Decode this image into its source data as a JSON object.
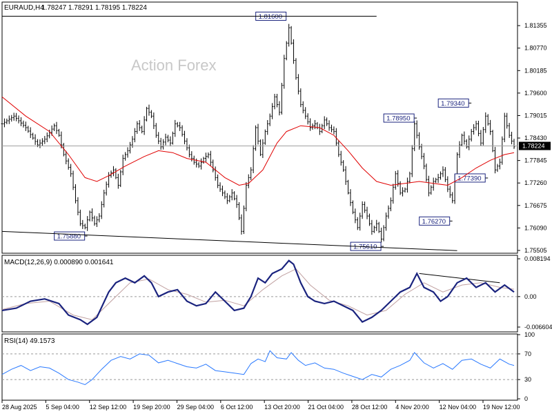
{
  "chart_data": {
    "type": "ohlc",
    "instrument": "EURAUD,H4",
    "header_values": "1.78247 1.78291 1.78195 1.78224",
    "watermark": "Action Forex",
    "current_price": 1.78224,
    "current_price_label": "1.78224",
    "price_axis": {
      "ylim": [
        1.7545,
        1.8195
      ],
      "ticks": [
        "1.81355",
        "1.80770",
        "1.80185",
        "1.79600",
        "1.79015",
        "1.78430",
        "1.77845",
        "1.77260",
        "1.76675",
        "1.76090",
        "1.75505"
      ]
    },
    "x_labels": [
      "28 Aug 2025",
      "5 Sep 04:00",
      "12 Sep 12:00",
      "19 Sep 20:00",
      "29 Sep 04:00",
      "6 Oct 12:00",
      "13 Oct 20:00",
      "21 Oct 04:00",
      "28 Oct 12:00",
      "4 Nov 20:00",
      "12 Nov 04:00",
      "19 Nov 12:00"
    ],
    "close_path": [
      [
        0,
        1.788
      ],
      [
        5,
        1.79
      ],
      [
        10,
        1.787
      ],
      [
        15,
        1.7825
      ],
      [
        18,
        1.784
      ],
      [
        22,
        1.7875
      ],
      [
        24,
        1.785
      ],
      [
        26,
        1.78
      ],
      [
        29,
        1.775
      ],
      [
        31,
        1.768
      ],
      [
        33,
        1.762
      ],
      [
        35,
        1.761
      ],
      [
        37,
        1.765
      ],
      [
        39,
        1.762
      ],
      [
        41,
        1.764
      ],
      [
        43,
        1.77
      ],
      [
        45,
        1.7745
      ],
      [
        47,
        1.776
      ],
      [
        49,
        1.772
      ],
      [
        51,
        1.779
      ],
      [
        53,
        1.781
      ],
      [
        55,
        1.784
      ],
      [
        57,
        1.788
      ],
      [
        59,
        1.786
      ],
      [
        61,
        1.792
      ],
      [
        63,
        1.79
      ],
      [
        65,
        1.785
      ],
      [
        67,
        1.782
      ],
      [
        69,
        1.7845
      ],
      [
        71,
        1.783
      ],
      [
        73,
        1.788
      ],
      [
        75,
        1.787
      ],
      [
        77,
        1.7835
      ],
      [
        79,
        1.78
      ],
      [
        81,
        1.778
      ],
      [
        83,
        1.777
      ],
      [
        85,
        1.779
      ],
      [
        87,
        1.78
      ],
      [
        89,
        1.776
      ],
      [
        91,
        1.772
      ],
      [
        93,
        1.77
      ],
      [
        95,
        1.768
      ],
      [
        97,
        1.77
      ],
      [
        99,
        1.767
      ],
      [
        101,
        1.76
      ],
      [
        103,
        1.772
      ],
      [
        105,
        1.776
      ],
      [
        107,
        1.787
      ],
      [
        109,
        1.78
      ],
      [
        111,
        1.786
      ],
      [
        113,
        1.79
      ],
      [
        115,
        1.795
      ],
      [
        117,
        1.791
      ],
      [
        119,
        1.805
      ],
      [
        121,
        1.813
      ],
      [
        122,
        1.809
      ],
      [
        124,
        1.8
      ],
      [
        126,
        1.793
      ],
      [
        128,
        1.79
      ],
      [
        130,
        1.787
      ],
      [
        132,
        1.788
      ],
      [
        134,
        1.786
      ],
      [
        136,
        1.789
      ],
      [
        138,
        1.787
      ],
      [
        140,
        1.786
      ],
      [
        142,
        1.78
      ],
      [
        144,
        1.776
      ],
      [
        146,
        1.77
      ],
      [
        148,
        1.765
      ],
      [
        150,
        1.761
      ],
      [
        152,
        1.767
      ],
      [
        154,
        1.764
      ],
      [
        156,
        1.76
      ],
      [
        158,
        1.762
      ],
      [
        160,
        1.758
      ],
      [
        162,
        1.764
      ],
      [
        164,
        1.768
      ],
      [
        166,
        1.775
      ],
      [
        168,
        1.77
      ],
      [
        170,
        1.771
      ],
      [
        172,
        1.775
      ],
      [
        174,
        1.788
      ],
      [
        176,
        1.782
      ],
      [
        178,
        1.777
      ],
      [
        180,
        1.77
      ],
      [
        182,
        1.773
      ],
      [
        184,
        1.774
      ],
      [
        186,
        1.776
      ],
      [
        188,
        1.771
      ],
      [
        190,
        1.768
      ],
      [
        192,
        1.78
      ],
      [
        194,
        1.785
      ],
      [
        196,
        1.782
      ],
      [
        198,
        1.786
      ],
      [
        200,
        1.788
      ],
      [
        202,
        1.783
      ],
      [
        204,
        1.79
      ],
      [
        206,
        1.786
      ],
      [
        208,
        1.776
      ],
      [
        210,
        1.778
      ],
      [
        212,
        1.79
      ],
      [
        214,
        1.785
      ],
      [
        216,
        1.782
      ]
    ],
    "moving_average": [
      [
        0,
        1.795
      ],
      [
        10,
        1.79
      ],
      [
        20,
        1.786
      ],
      [
        28,
        1.78
      ],
      [
        35,
        1.774
      ],
      [
        40,
        1.773
      ],
      [
        45,
        1.7745
      ],
      [
        52,
        1.777
      ],
      [
        60,
        1.7795
      ],
      [
        66,
        1.781
      ],
      [
        72,
        1.7805
      ],
      [
        78,
        1.779
      ],
      [
        86,
        1.778
      ],
      [
        94,
        1.774
      ],
      [
        100,
        1.772
      ],
      [
        104,
        1.7725
      ],
      [
        110,
        1.776
      ],
      [
        116,
        1.783
      ],
      [
        120,
        1.786
      ],
      [
        126,
        1.7875
      ],
      [
        134,
        1.787
      ],
      [
        140,
        1.785
      ],
      [
        146,
        1.781
      ],
      [
        152,
        1.7765
      ],
      [
        158,
        1.773
      ],
      [
        164,
        1.772
      ],
      [
        170,
        1.7725
      ],
      [
        176,
        1.773
      ],
      [
        182,
        1.7725
      ],
      [
        188,
        1.772
      ],
      [
        194,
        1.774
      ],
      [
        200,
        1.7765
      ],
      [
        206,
        1.7785
      ],
      [
        212,
        1.78
      ],
      [
        216,
        1.7805
      ]
    ],
    "annotations": [
      {
        "label": "1.81600",
        "x": 121,
        "value": 1.816
      },
      {
        "label": "1.75880",
        "x": 36,
        "value": 1.7588
      },
      {
        "label": "1.75610",
        "x": 161,
        "value": 1.7561
      },
      {
        "label": "1.78950",
        "x": 175,
        "value": 1.7895
      },
      {
        "label": "1.76270",
        "x": 190,
        "value": 1.7627
      },
      {
        "label": "1.79340",
        "x": 198,
        "value": 1.7934
      },
      {
        "label": "1.77390",
        "x": 205,
        "value": 1.7739
      }
    ],
    "trendlines": [
      {
        "panel": "price",
        "from": [
          0,
          1.816
        ],
        "to": [
          158,
          1.816
        ]
      },
      {
        "panel": "price",
        "from": [
          0,
          1.76
        ],
        "to": [
          192,
          1.755
        ]
      },
      {
        "panel": "macd",
        "from": [
          176,
          0.005
        ],
        "to": [
          210,
          0.003
        ]
      }
    ],
    "macd": {
      "label": "MACD(12,26,9) 0.000890 0.001641",
      "ylim": [
        -0.0075,
        0.0088
      ],
      "ticks": [
        "0.008194",
        "0.00",
        "-0.006604"
      ],
      "line": [
        [
          0,
          -0.003
        ],
        [
          6,
          -0.0025
        ],
        [
          12,
          -0.001
        ],
        [
          18,
          -0.0005
        ],
        [
          24,
          -0.0015
        ],
        [
          28,
          -0.004
        ],
        [
          33,
          -0.005
        ],
        [
          36,
          -0.006
        ],
        [
          40,
          -0.0045
        ],
        [
          45,
          0.001
        ],
        [
          48,
          0.003
        ],
        [
          52,
          0.004
        ],
        [
          56,
          0.003
        ],
        [
          60,
          0.0045
        ],
        [
          63,
          0.003
        ],
        [
          66,
          0.0
        ],
        [
          70,
          0.001
        ],
        [
          74,
          0.0015
        ],
        [
          78,
          -0.001
        ],
        [
          82,
          -0.002
        ],
        [
          86,
          -0.0015
        ],
        [
          90,
          0.001
        ],
        [
          94,
          -0.001
        ],
        [
          98,
          -0.003
        ],
        [
          102,
          -0.0025
        ],
        [
          105,
          0.0
        ],
        [
          108,
          0.004
        ],
        [
          111,
          0.003
        ],
        [
          114,
          0.005
        ],
        [
          118,
          0.006
        ],
        [
          121,
          0.0078
        ],
        [
          123,
          0.007
        ],
        [
          126,
          0.003
        ],
        [
          129,
          0.0
        ],
        [
          132,
          -0.001
        ],
        [
          136,
          -0.0015
        ],
        [
          140,
          -0.001
        ],
        [
          144,
          -0.002
        ],
        [
          148,
          -0.003
        ],
        [
          152,
          -0.0055
        ],
        [
          156,
          -0.0045
        ],
        [
          160,
          -0.003
        ],
        [
          164,
          -0.001
        ],
        [
          168,
          0.001
        ],
        [
          172,
          0.002
        ],
        [
          175,
          0.005
        ],
        [
          178,
          0.002
        ],
        [
          182,
          0.001
        ],
        [
          185,
          -0.001
        ],
        [
          188,
          0.0
        ],
        [
          192,
          0.003
        ],
        [
          196,
          0.004
        ],
        [
          200,
          0.002
        ],
        [
          204,
          0.003
        ],
        [
          208,
          0.001
        ],
        [
          212,
          0.0025
        ],
        [
          216,
          0.001
        ]
      ],
      "signal": [
        [
          0,
          -0.0028
        ],
        [
          10,
          -0.0015
        ],
        [
          20,
          -0.001
        ],
        [
          30,
          -0.004
        ],
        [
          38,
          -0.005
        ],
        [
          46,
          -0.001
        ],
        [
          54,
          0.003
        ],
        [
          62,
          0.0038
        ],
        [
          70,
          0.0015
        ],
        [
          78,
          0.0005
        ],
        [
          86,
          -0.0012
        ],
        [
          94,
          -0.0008
        ],
        [
          102,
          -0.002
        ],
        [
          110,
          0.0015
        ],
        [
          118,
          0.0045
        ],
        [
          124,
          0.006
        ],
        [
          130,
          0.0025
        ],
        [
          138,
          -0.0008
        ],
        [
          146,
          -0.002
        ],
        [
          154,
          -0.004
        ],
        [
          162,
          -0.003
        ],
        [
          170,
          0.0005
        ],
        [
          178,
          0.003
        ],
        [
          186,
          0.001
        ],
        [
          194,
          0.0025
        ],
        [
          202,
          0.003
        ],
        [
          210,
          0.002
        ],
        [
          216,
          0.0016
        ]
      ]
    },
    "rsi": {
      "label": "RSI(14) 49.1573",
      "ylim": [
        0,
        100
      ],
      "ticks": [
        "100",
        "70",
        "30",
        "0"
      ],
      "tick_values": [
        100,
        70,
        30,
        0
      ],
      "line": [
        [
          0,
          38
        ],
        [
          4,
          46
        ],
        [
          8,
          52
        ],
        [
          12,
          44
        ],
        [
          16,
          50
        ],
        [
          20,
          48
        ],
        [
          24,
          40
        ],
        [
          28,
          30
        ],
        [
          32,
          26
        ],
        [
          35,
          22
        ],
        [
          38,
          30
        ],
        [
          42,
          46
        ],
        [
          46,
          60
        ],
        [
          50,
          66
        ],
        [
          54,
          62
        ],
        [
          58,
          70
        ],
        [
          62,
          68
        ],
        [
          66,
          56
        ],
        [
          70,
          60
        ],
        [
          74,
          55
        ],
        [
          78,
          50
        ],
        [
          82,
          48
        ],
        [
          86,
          54
        ],
        [
          90,
          44
        ],
        [
          94,
          42
        ],
        [
          98,
          40
        ],
        [
          102,
          38
        ],
        [
          105,
          55
        ],
        [
          108,
          62
        ],
        [
          111,
          58
        ],
        [
          113,
          75
        ],
        [
          116,
          64
        ],
        [
          120,
          62
        ],
        [
          122,
          72
        ],
        [
          125,
          60
        ],
        [
          128,
          52
        ],
        [
          132,
          56
        ],
        [
          136,
          48
        ],
        [
          140,
          46
        ],
        [
          144,
          40
        ],
        [
          148,
          35
        ],
        [
          152,
          30
        ],
        [
          156,
          38
        ],
        [
          160,
          34
        ],
        [
          164,
          46
        ],
        [
          168,
          52
        ],
        [
          172,
          60
        ],
        [
          174,
          72
        ],
        [
          178,
          56
        ],
        [
          182,
          48
        ],
        [
          186,
          55
        ],
        [
          190,
          46
        ],
        [
          194,
          60
        ],
        [
          198,
          62
        ],
        [
          202,
          54
        ],
        [
          206,
          48
        ],
        [
          210,
          62
        ],
        [
          214,
          54
        ],
        [
          216,
          52
        ]
      ]
    }
  }
}
